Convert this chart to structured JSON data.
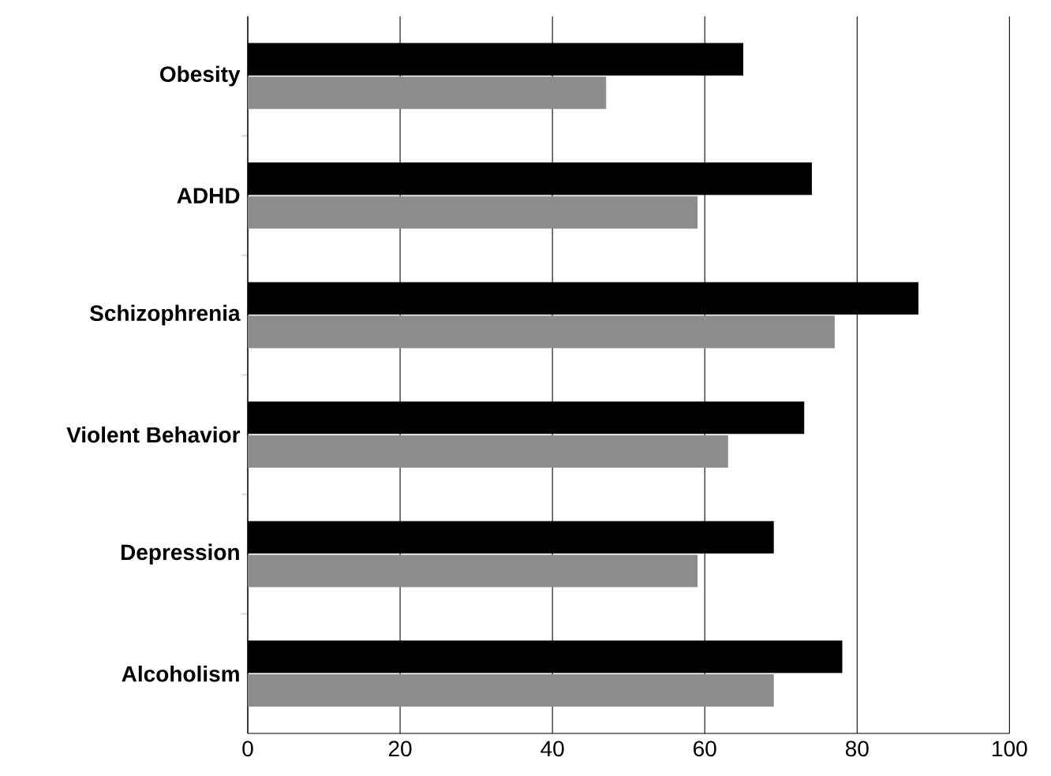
{
  "chart_data": {
    "type": "bar",
    "orientation": "horizontal",
    "categories": [
      "Obesity",
      "ADHD",
      "Schizophrenia",
      "Violent Behavior",
      "Depression",
      "Alcoholism"
    ],
    "series": [
      {
        "color": "#000000",
        "values": [
          65,
          74,
          88,
          73,
          69,
          78
        ]
      },
      {
        "color": "#8c8c8c",
        "values": [
          47,
          59,
          77,
          63,
          59,
          69
        ]
      }
    ],
    "xlim": [
      0,
      100
    ],
    "xticks": [
      0,
      20,
      40,
      60,
      80,
      100
    ],
    "grid": "x"
  }
}
